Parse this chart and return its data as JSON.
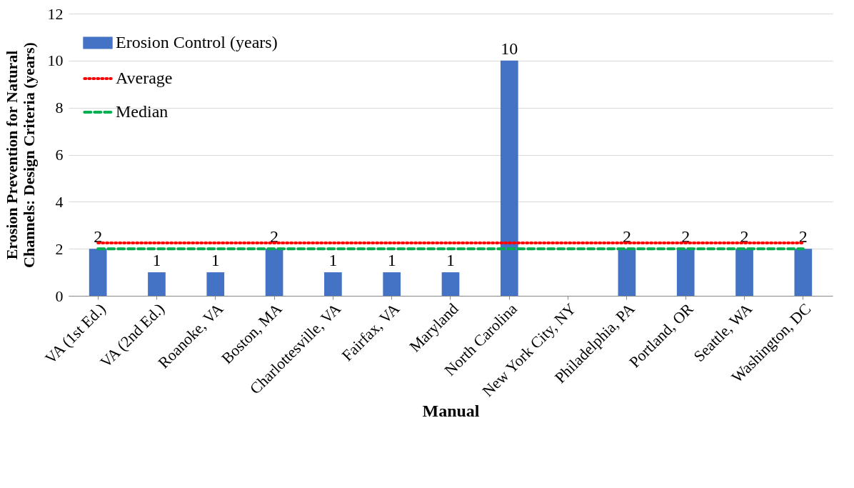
{
  "chart_data": {
    "type": "bar",
    "xlabel": "Manual",
    "ylabel": "Erosion Prevention for Natural\nChannels: Design Criteria (years)",
    "categories": [
      "VA (1st Ed.)",
      "VA (2nd Ed.)",
      "Roanoke, VA",
      "Boston, MA",
      "Charlottesville, VA",
      "Fairfax, VA",
      "Maryland",
      "North Carolina",
      "New York City, NY",
      "Philadelphia, PA",
      "Portland, OR",
      "Seattle, WA",
      "Washington, DC"
    ],
    "series": [
      {
        "name": "Erosion Control (years)",
        "color": "#4472c4",
        "values": [
          2,
          1,
          1,
          2,
          1,
          1,
          1,
          10,
          null,
          2,
          2,
          2,
          2
        ],
        "value_labels": [
          "2",
          "1",
          "1",
          "2",
          "1",
          "1",
          "1",
          "10",
          null,
          "2",
          "2",
          "2",
          "2"
        ]
      },
      {
        "name": "Average",
        "type": "line",
        "color": "#ff0000",
        "line_style": "dotted",
        "values": [
          2.25,
          2.25,
          2.25,
          2.25,
          2.25,
          2.25,
          2.25,
          2.25,
          2.25,
          2.25,
          2.25,
          2.25,
          2.25
        ]
      },
      {
        "name": "Median",
        "type": "line",
        "color": "#00b050",
        "line_style": "dashed",
        "values": [
          2,
          2,
          2,
          2,
          2,
          2,
          2,
          2,
          2,
          2,
          2,
          2,
          2
        ]
      }
    ],
    "ylim": [
      0,
      12
    ],
    "yticks": [
      0,
      2,
      4,
      6,
      8,
      10,
      12
    ],
    "grid": "y",
    "legend": "top left"
  }
}
